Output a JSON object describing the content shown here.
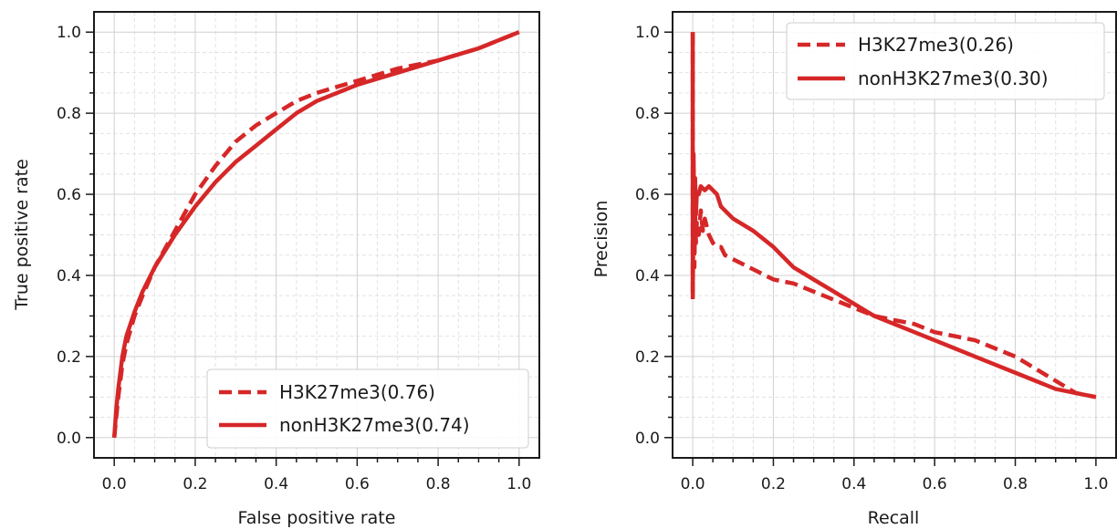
{
  "chart_data": [
    {
      "type": "line",
      "panel": "left",
      "xlabel": "False positive rate",
      "ylabel": "True positive rate",
      "xlim": [
        -0.05,
        1.05
      ],
      "ylim": [
        -0.05,
        1.05
      ],
      "xticks": [
        "0.0",
        "0.2",
        "0.4",
        "0.6",
        "0.8",
        "1.0"
      ],
      "yticks": [
        "0.0",
        "0.2",
        "0.4",
        "0.6",
        "0.8",
        "1.0"
      ],
      "grid": true,
      "legend_position": "lower-right",
      "series": [
        {
          "name": "H3K27me3(0.76)",
          "style": "dashed",
          "color": "#d62728",
          "x": [
            0.0,
            0.005,
            0.01,
            0.02,
            0.03,
            0.05,
            0.07,
            0.1,
            0.15,
            0.2,
            0.25,
            0.3,
            0.35,
            0.4,
            0.45,
            0.5,
            0.6,
            0.7,
            0.8,
            0.9,
            0.95,
            1.0
          ],
          "y": [
            0.0,
            0.05,
            0.1,
            0.18,
            0.23,
            0.3,
            0.35,
            0.42,
            0.51,
            0.6,
            0.67,
            0.73,
            0.77,
            0.8,
            0.83,
            0.85,
            0.88,
            0.91,
            0.93,
            0.96,
            0.98,
            1.0
          ]
        },
        {
          "name": "nonH3K27me3(0.74)",
          "style": "solid",
          "color": "#d62728",
          "x": [
            0.0,
            0.005,
            0.01,
            0.02,
            0.03,
            0.05,
            0.07,
            0.1,
            0.15,
            0.2,
            0.25,
            0.3,
            0.35,
            0.4,
            0.45,
            0.5,
            0.6,
            0.7,
            0.8,
            0.9,
            0.95,
            1.0
          ],
          "y": [
            0.0,
            0.07,
            0.12,
            0.2,
            0.25,
            0.31,
            0.36,
            0.42,
            0.5,
            0.57,
            0.63,
            0.68,
            0.72,
            0.76,
            0.8,
            0.83,
            0.87,
            0.9,
            0.93,
            0.96,
            0.98,
            1.0
          ]
        }
      ]
    },
    {
      "type": "line",
      "panel": "right",
      "xlabel": "Recall",
      "ylabel": "Precision",
      "xlim": [
        -0.05,
        1.05
      ],
      "ylim": [
        -0.05,
        1.05
      ],
      "xticks": [
        "0.0",
        "0.2",
        "0.4",
        "0.6",
        "0.8",
        "1.0"
      ],
      "yticks": [
        "0.0",
        "0.2",
        "0.4",
        "0.6",
        "0.8",
        "1.0"
      ],
      "grid": true,
      "legend_position": "upper-right",
      "series": [
        {
          "name": "H3K27me3(0.26)",
          "style": "dashed",
          "color": "#d62728",
          "x": [
            0.0,
            0.0,
            0.002,
            0.004,
            0.006,
            0.008,
            0.01,
            0.015,
            0.02,
            0.025,
            0.03,
            0.04,
            0.05,
            0.06,
            0.07,
            0.08,
            0.1,
            0.12,
            0.14,
            0.16,
            0.18,
            0.2,
            0.25,
            0.3,
            0.35,
            0.4,
            0.45,
            0.5,
            0.55,
            0.6,
            0.65,
            0.7,
            0.75,
            0.8,
            0.85,
            0.9,
            0.95,
            1.0
          ],
          "y": [
            1.0,
            0.34,
            0.6,
            0.42,
            0.55,
            0.48,
            0.53,
            0.5,
            0.56,
            0.51,
            0.54,
            0.5,
            0.48,
            0.47,
            0.47,
            0.45,
            0.44,
            0.43,
            0.42,
            0.41,
            0.4,
            0.39,
            0.38,
            0.36,
            0.34,
            0.32,
            0.3,
            0.29,
            0.28,
            0.26,
            0.25,
            0.24,
            0.22,
            0.2,
            0.17,
            0.14,
            0.11,
            0.1
          ]
        },
        {
          "name": "nonH3K27me3(0.30)",
          "style": "solid",
          "color": "#d62728",
          "x": [
            0.0,
            0.0,
            0.002,
            0.004,
            0.006,
            0.008,
            0.01,
            0.015,
            0.02,
            0.03,
            0.04,
            0.05,
            0.06,
            0.07,
            0.08,
            0.1,
            0.15,
            0.2,
            0.25,
            0.3,
            0.35,
            0.4,
            0.45,
            0.5,
            0.55,
            0.6,
            0.65,
            0.7,
            0.75,
            0.8,
            0.85,
            0.9,
            0.95,
            1.0
          ],
          "y": [
            1.0,
            0.36,
            0.7,
            0.5,
            0.64,
            0.55,
            0.6,
            0.6,
            0.62,
            0.61,
            0.62,
            0.61,
            0.6,
            0.57,
            0.56,
            0.54,
            0.51,
            0.47,
            0.42,
            0.39,
            0.36,
            0.33,
            0.3,
            0.28,
            0.26,
            0.24,
            0.22,
            0.2,
            0.18,
            0.16,
            0.14,
            0.12,
            0.11,
            0.1
          ]
        }
      ]
    }
  ]
}
